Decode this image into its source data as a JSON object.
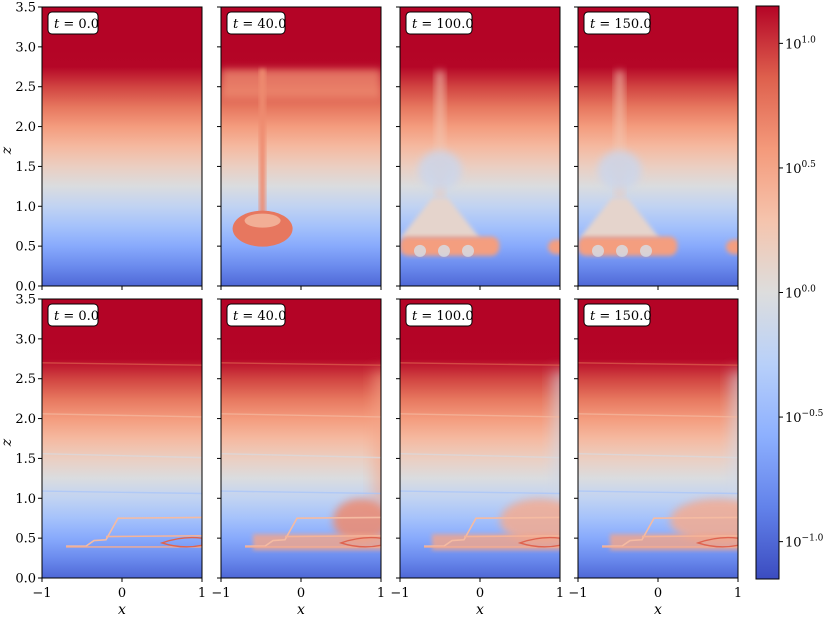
{
  "chart_data": {
    "type": "heatmap",
    "colormap": "coolwarm",
    "color_scale": "log",
    "xlabel": "x",
    "ylabel": "z",
    "xlim": [
      -1,
      1
    ],
    "ylim": [
      0,
      3.5
    ],
    "x_ticks": [
      "−1",
      "0",
      "1"
    ],
    "y_ticks": [
      "0.0",
      "0.5",
      "1.0",
      "1.5",
      "2.0",
      "2.5",
      "3.0",
      "3.5"
    ],
    "colorbar": {
      "range": [
        -1.15,
        1.15
      ],
      "ticks": [
        {
          "value": 1.0,
          "base": "10",
          "exp": "1.0"
        },
        {
          "value": 0.5,
          "base": "10",
          "exp": "0.5"
        },
        {
          "value": 0.0,
          "base": "10",
          "exp": "0.0"
        },
        {
          "value": -0.5,
          "base": "10",
          "exp": "−0.5"
        },
        {
          "value": -1.0,
          "base": "10",
          "exp": "−1.0"
        }
      ]
    },
    "rows": [
      {
        "panels": [
          {
            "label_var": "t",
            "label_eq": " = ",
            "label_val": "0.0",
            "time": 0
          },
          {
            "label_var": "t",
            "label_eq": " = ",
            "label_val": "40.0",
            "time": 40
          },
          {
            "label_var": "t",
            "label_eq": " = ",
            "label_val": "100.0",
            "time": 100
          },
          {
            "label_var": "t",
            "label_eq": " = ",
            "label_val": "150.0",
            "time": 150
          }
        ]
      },
      {
        "panels": [
          {
            "label_var": "t",
            "label_eq": " = ",
            "label_val": "0.0",
            "time": 0
          },
          {
            "label_var": "t",
            "label_eq": " = ",
            "label_val": "40.0",
            "time": 40
          },
          {
            "label_var": "t",
            "label_eq": " = ",
            "label_val": "100.0",
            "time": 100
          },
          {
            "label_var": "t",
            "label_eq": " = ",
            "label_val": "150.0",
            "time": 150
          }
        ]
      }
    ]
  }
}
